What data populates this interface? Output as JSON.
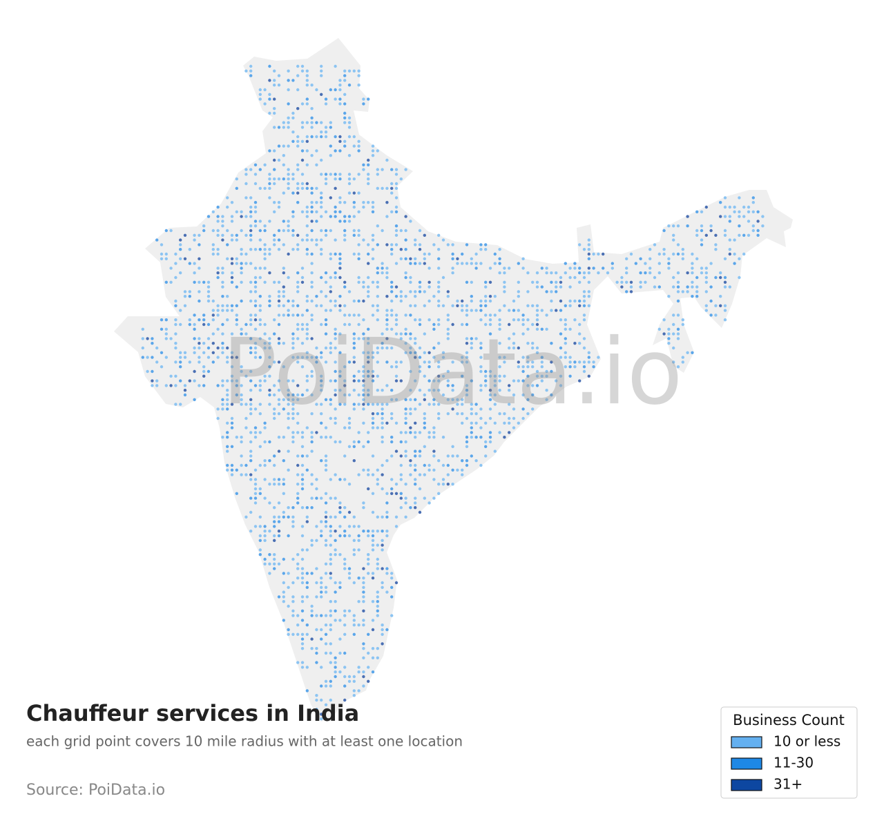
{
  "header": {
    "title": "Chauffeur services in India",
    "subtitle": "each grid point covers 10 mile radius with at least one location",
    "source": "Source: PoiData.io"
  },
  "watermark": "PoiData.io",
  "legend": {
    "title": "Business Count",
    "items": [
      {
        "label": "10 or less",
        "color": "#64b0f0"
      },
      {
        "label": "11-30",
        "color": "#1e88e5"
      },
      {
        "label": "31+",
        "color": "#0d47a1"
      }
    ]
  }
}
